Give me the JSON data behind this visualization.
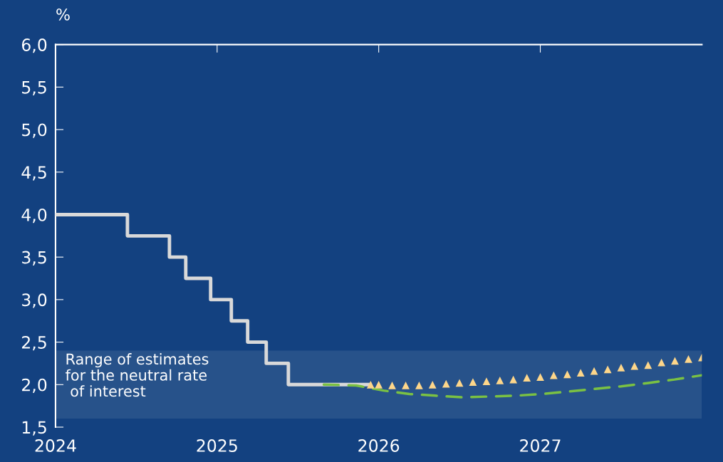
{
  "chart_data": {
    "type": "line",
    "ylabel": "%",
    "xlim": [
      2024,
      2028
    ],
    "xticks": [
      2024,
      2025,
      2026,
      2027
    ],
    "ylim": [
      1.5,
      6.0
    ],
    "yticks": [
      {
        "value": 1.5,
        "label": "1,5"
      },
      {
        "value": 2.0,
        "label": "2,0"
      },
      {
        "value": 2.5,
        "label": "2,5"
      },
      {
        "value": 3.0,
        "label": "3,0"
      },
      {
        "value": 3.5,
        "label": "3,5"
      },
      {
        "value": 4.0,
        "label": "4,0"
      },
      {
        "value": 4.5,
        "label": "4,5"
      },
      {
        "value": 5.0,
        "label": "5,0"
      },
      {
        "value": 5.5,
        "label": "5,5"
      },
      {
        "value": 6.0,
        "label": "6,0"
      }
    ],
    "grid": false,
    "bands": [
      {
        "axis": "y",
        "from": 1.6,
        "to": 2.4,
        "label": "Range of estimates\nfor the neutral rate\n of interest",
        "color": "#27528a"
      }
    ],
    "series": [
      {
        "type": "step",
        "color": "#d9d9d9",
        "marker": "none",
        "line_style": "solid",
        "x": [
          2024,
          2024.445,
          2024.705,
          2024.806,
          2024.96,
          2025.088,
          2025.189,
          2025.304,
          2025.441,
          2025.947
        ],
        "values": [
          4.0,
          3.75,
          3.5,
          3.25,
          3.0,
          2.75,
          2.5,
          2.25,
          2.0,
          2.0
        ]
      },
      {
        "color": "#7ac143",
        "marker": "none",
        "line_style": "dashed",
        "x": [
          2025.66,
          2025.86,
          2026.03,
          2026.19,
          2026.35,
          2026.52,
          2026.68,
          2026.85,
          2027.01,
          2027.18,
          2027.34,
          2027.5,
          2027.67,
          2027.83,
          2028.0
        ],
        "values": [
          2.0,
          1.99,
          1.93,
          1.89,
          1.87,
          1.85,
          1.86,
          1.87,
          1.89,
          1.92,
          1.95,
          1.98,
          2.02,
          2.06,
          2.11
        ]
      },
      {
        "type": "scatter",
        "color": "#fdd68a",
        "marker": "triangle",
        "x": [
          2025.95,
          2026.0,
          2026.083,
          2026.167,
          2026.25,
          2026.333,
          2026.417,
          2026.5,
          2026.583,
          2026.667,
          2026.75,
          2026.833,
          2026.917,
          2027.0,
          2027.083,
          2027.167,
          2027.25,
          2027.333,
          2027.417,
          2027.5,
          2027.583,
          2027.667,
          2027.75,
          2027.833,
          2027.917,
          2028.0
        ],
        "values": [
          2.0,
          2.0,
          1.99,
          1.99,
          1.99,
          2.0,
          2.01,
          2.02,
          2.03,
          2.04,
          2.05,
          2.06,
          2.08,
          2.09,
          2.11,
          2.12,
          2.14,
          2.16,
          2.18,
          2.2,
          2.22,
          2.23,
          2.26,
          2.28,
          2.3,
          2.32
        ]
      }
    ]
  }
}
